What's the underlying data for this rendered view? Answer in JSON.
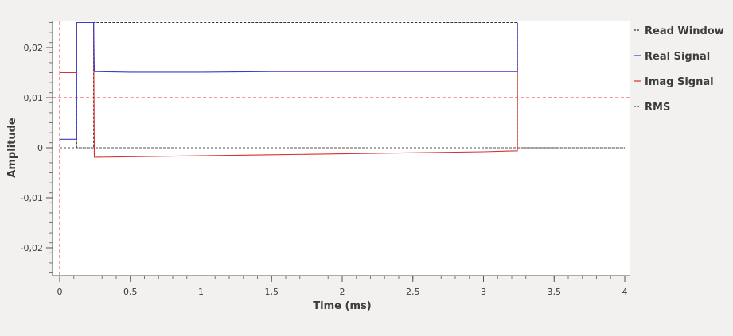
{
  "chart_data": {
    "type": "line",
    "xlabel": "Time (ms)",
    "ylabel": "Amplitude",
    "xlim": [
      0,
      4
    ],
    "ylim": [
      -0.025,
      0.025
    ],
    "x_ticks": [
      {
        "v": 0,
        "label": "0"
      },
      {
        "v": 0.5,
        "label": "0,5"
      },
      {
        "v": 1,
        "label": "1"
      },
      {
        "v": 1.5,
        "label": "1,5"
      },
      {
        "v": 2,
        "label": "2"
      },
      {
        "v": 2.5,
        "label": "2,5"
      },
      {
        "v": 3,
        "label": "3"
      },
      {
        "v": 3.5,
        "label": "3,5"
      },
      {
        "v": 4,
        "label": "4"
      }
    ],
    "y_ticks": [
      {
        "v": 0.02,
        "label": "0,02"
      },
      {
        "v": 0.01,
        "label": "0,01"
      },
      {
        "v": 0,
        "label": "0"
      },
      {
        "v": -0.01,
        "label": "-0,01"
      },
      {
        "v": -0.02,
        "label": "-0,02"
      }
    ],
    "legend_position": "right",
    "grid": false,
    "series": [
      {
        "name": "Read Window",
        "color": "#333333",
        "style": "dashed",
        "x": [
          0.12,
          0.12,
          0.24,
          0.24,
          3.24,
          3.24,
          4.0
        ],
        "y": [
          0.025,
          0.0,
          0.0,
          0.025,
          0.025,
          0.0,
          0.0
        ]
      },
      {
        "name": "Real Signal",
        "color": "#3a3acc",
        "style": "solid",
        "x": [
          0.0,
          0.12,
          0.12,
          0.125,
          0.24,
          0.245,
          0.5,
          1.0,
          1.5,
          2.0,
          2.5,
          3.0,
          3.24,
          3.24
        ],
        "y": [
          0.0017,
          0.0017,
          0.025,
          0.025,
          0.025,
          0.0152,
          0.0151,
          0.0151,
          0.0152,
          0.0152,
          0.0152,
          0.0152,
          0.0152,
          0.025
        ]
      },
      {
        "name": "Imag Signal",
        "color": "#d93030",
        "style": "solid",
        "x": [
          0.0,
          0.12,
          0.12,
          0.125,
          0.24,
          0.245,
          0.5,
          1.0,
          1.5,
          2.0,
          2.5,
          3.0,
          3.24,
          3.24
        ],
        "y": [
          0.015,
          0.015,
          0.025,
          0.025,
          0.025,
          -0.0019,
          -0.0018,
          -0.0016,
          -0.0014,
          -0.0012,
          -0.001,
          -0.0008,
          -0.0006,
          0.025
        ]
      },
      {
        "name": "RMS",
        "color": "#555555",
        "style": "dashed",
        "x": [
          0.0,
          4.0
        ],
        "y": [
          0.0,
          0.0
        ]
      }
    ],
    "reference_lines": [
      {
        "orientation": "horizontal",
        "value": 0.01,
        "color": "#e83a3a"
      },
      {
        "orientation": "vertical",
        "value": 0.0,
        "color": "#e83a3a"
      }
    ]
  }
}
